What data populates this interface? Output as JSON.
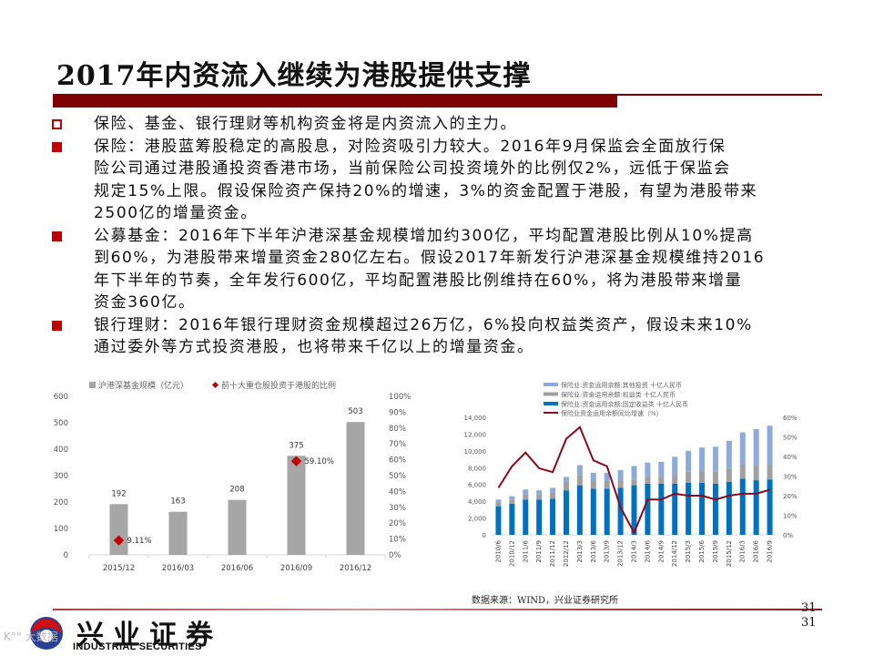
{
  "slide": {
    "title": "2017年内资流入继续为港股提供支撑",
    "page_number": "31",
    "page_number_repeat": "31",
    "source": "数据来源：WIND，兴业证券研究所",
    "logo": {
      "cn": "兴业证券",
      "en": "INDUSTRIAL SECURITIES"
    },
    "watermark": "K°° 大数据"
  },
  "bullets": [
    {
      "style": "hollow",
      "text": "保险、基金、银行理财等机构资金将是内资流入的主力。"
    },
    {
      "style": "filled",
      "text": "保险：港股蓝筹股稳定的高股息，对险资吸引力较大。2016年9月保监会全面放行保\n险公司通过港股通投资香港市场，当前保险公司投资境外的比例仅2%，远低于保监会\n规定15%上限。假设保险资产保持20%的增速，3%的资金配置于港股，有望为港股带来\n2500亿的增量资金。"
    },
    {
      "style": "filled",
      "text": "公募基金：2016年下半年沪港深基金规模增加约300亿，平均配置港股比例从10%提高\n到60%，为港股带来增量资金280亿左右。假设2017年新发行沪港深基金规模维持2016\n年下半年的节奏，全年发行600亿，平均配置港股比例维持在60%，将为港股带来增量\n资金360亿。"
    },
    {
      "style": "filled",
      "text": "银行理财：2016年银行理财资金规模超过26万亿，6%投向权益类资产，假设未来10%\n通过委外等方式投资港股，也将带来千亿以上的增量资金。"
    }
  ],
  "colors": {
    "accent": "#7f0000",
    "bullet": "#c00000",
    "bar_gray": "#a6a6a6",
    "marker_red": "#c00000",
    "fixed_income": "#0070c0",
    "equity": "#a0a0a0",
    "other": "#8eaadb",
    "growth_line": "#8b0a1a"
  },
  "chart_data": [
    {
      "type": "bar",
      "title": "",
      "categories": [
        "2015/12",
        "2016/03",
        "2016/06",
        "2016/09",
        "2016/12"
      ],
      "series": [
        {
          "name": "沪港深基金规模（亿元）",
          "kind": "bar",
          "axis": "left",
          "values": [
            192,
            163,
            208,
            375,
            503
          ],
          "labels": [
            "192",
            "163",
            "208",
            "375",
            "503"
          ]
        },
        {
          "name": "前十大重仓股投资于港股的比例",
          "kind": "marker",
          "axis": "right",
          "values": [
            9.11,
            null,
            null,
            59.1,
            null
          ],
          "labels": [
            "9.11%",
            "",
            "",
            "59.10%",
            ""
          ]
        }
      ],
      "left_axis": {
        "ticks": [
          "0",
          "100",
          "200",
          "300",
          "400",
          "500",
          "600"
        ],
        "ylim": [
          0,
          600
        ]
      },
      "right_axis": {
        "ticks": [
          "0%",
          "10%",
          "20%",
          "30%",
          "40%",
          "50%",
          "60%",
          "70%",
          "80%",
          "90%",
          "100%"
        ],
        "ylim": [
          0,
          100
        ]
      },
      "legend": [
        "沪港深基金规模（亿元）",
        "前十大重仓股投资于港股的比例"
      ],
      "legend_position": "top",
      "grid": false
    },
    {
      "type": "bar",
      "stacked": true,
      "title": "",
      "categories": [
        "2010/6",
        "2010/12",
        "2011/6",
        "2011/9",
        "2011/12",
        "2012/12",
        "2013/3",
        "2013/6",
        "2013/9",
        "2013/12",
        "2014/3",
        "2014/6",
        "2014/9",
        "2014/12",
        "2015/3",
        "2015/6",
        "2015/9",
        "2015/12",
        "2016/3",
        "2016/6",
        "2016/9"
      ],
      "series": [
        {
          "name": "保险业:资金运用余额:固定收益类 十亿人民币",
          "kind": "bar",
          "axis": "left",
          "values": [
            3400,
            3700,
            4200,
            4200,
            4300,
            5300,
            5900,
            5500,
            5500,
            5600,
            5900,
            6100,
            6100,
            6100,
            6200,
            6200,
            6100,
            6300,
            6700,
            6500,
            6600
          ]
        },
        {
          "name": "保险业:资金运用余额:权益类 十亿人民币",
          "kind": "bar",
          "axis": "left",
          "values": [
            400,
            500,
            600,
            600,
            700,
            1000,
            1200,
            1000,
            1000,
            900,
            700,
            800,
            800,
            900,
            1300,
            1400,
            1400,
            1600,
            1700,
            1700,
            1800
          ]
        },
        {
          "name": "保险业:资金运用余额:其他投资 十亿人民币",
          "kind": "bar",
          "axis": "left",
          "values": [
            400,
            400,
            600,
            500,
            600,
            600,
            1200,
            900,
            900,
            1200,
            1600,
            1700,
            1800,
            2300,
            2500,
            2800,
            3000,
            3300,
            3800,
            4400,
            4600
          ]
        },
        {
          "name": "保险业资金运用余额同比增速（%）",
          "kind": "line",
          "axis": "right",
          "values": [
            24,
            35,
            42,
            34,
            32,
            49,
            55,
            38,
            35,
            14,
            1,
            18,
            18,
            21,
            20,
            20,
            18,
            20,
            21,
            21,
            23
          ]
        }
      ],
      "left_axis": {
        "ticks": [
          "0",
          "2,000",
          "4,000",
          "6,000",
          "8,000",
          "10,000",
          "12,000",
          "14,000"
        ],
        "ylim": [
          0,
          14000
        ]
      },
      "right_axis": {
        "ticks": [
          "0%",
          "10%",
          "20%",
          "30%",
          "40%",
          "50%",
          "60%"
        ],
        "ylim": [
          0,
          60
        ]
      },
      "legend": [
        "保险业:资金运用余额:其他投资 十亿人民币",
        "保险业:资金运用余额:权益类 十亿人民币",
        "保险业:资金运用余额:固定收益类 十亿人民币",
        "保险业资金运用余额同比增速（%）"
      ],
      "legend_position": "top",
      "grid": false
    }
  ]
}
